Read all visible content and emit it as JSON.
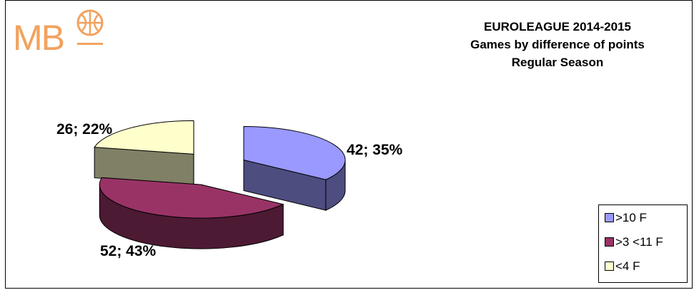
{
  "logo": {
    "text": "MB",
    "icon": "basketball-icon",
    "color": "#f2a25e"
  },
  "chart_data": {
    "type": "pie",
    "style": "3d-exploded",
    "title": [
      "EUROLEAGUE  2014-2015",
      "Games by difference of points",
      "Regular Season"
    ],
    "slices": [
      {
        "name": ">10 F",
        "value": 42,
        "percent": 35,
        "label": "42; 35%",
        "color": "#9999ff",
        "side_color": "#4d4d80"
      },
      {
        "name": ">3 <11 F",
        "value": 52,
        "percent": 43,
        "label": "52; 43%",
        "color": "#993366",
        "side_color": "#4d1a33"
      },
      {
        "name": "<4 F",
        "value": 26,
        "percent": 22,
        "label": "26; 22%",
        "color": "#ffffcc",
        "side_color": "#808066"
      }
    ],
    "legend_position": "bottom-right"
  }
}
